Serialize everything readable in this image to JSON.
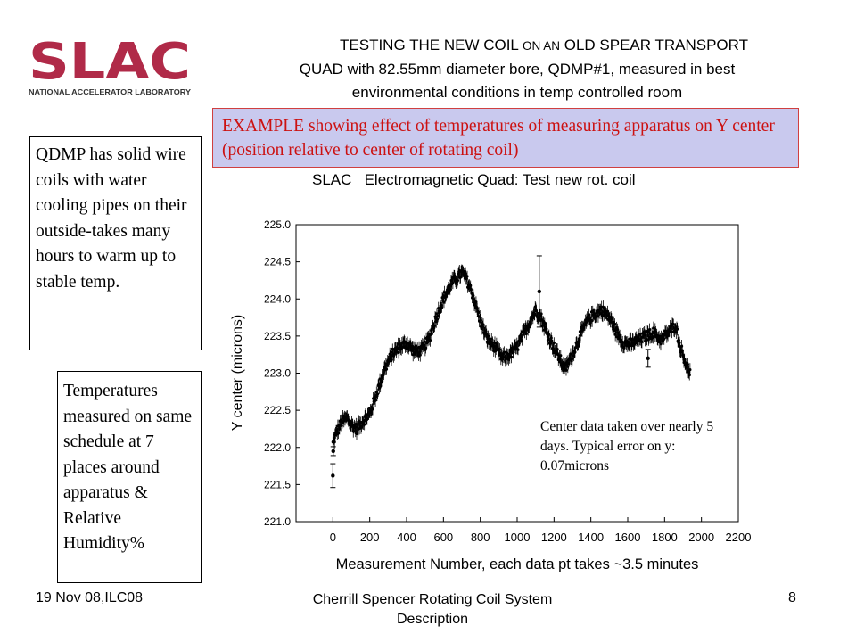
{
  "logo": {
    "text": "SLAC",
    "subtitle": "NATIONAL ACCELERATOR LABORATORY",
    "color": "#b02a48"
  },
  "title": {
    "line1_a": "TESTING THE NEW COIL ",
    "line1_b": "ON AN",
    "line1_c": " OLD SPEAR TRANSPORT",
    "line2": "QUAD with 82.55mm diameter bore, QDMP#1, measured in best",
    "line3": "environmental conditions in temp controlled room"
  },
  "example_box": "EXAMPLE showing effect of temperatures of measuring apparatus on Y center (position relative to center of rotating coil)",
  "note1": "QDMP has solid wire coils with water cooling pipes on their outside-takes many hours to warm up to stable temp.",
  "note2": "Temperatures measured on same schedule at 7 places around apparatus & Relative Humidity%",
  "footer": {
    "left": "19 Nov 08,ILC08",
    "center": "Cherrill Spencer Rotating Coil System Description",
    "right": "8"
  },
  "chart_data": {
    "type": "scatter",
    "title": "SLAC   Electromagnetic Quad: Test new rot. coil",
    "xlabel": "Measurement Number, each data pt takes ~3.5 minutes",
    "ylabel": "Y center (microns)",
    "xlim": [
      -200,
      2200
    ],
    "ylim": [
      221.0,
      225.0
    ],
    "xticks": [
      0,
      200,
      400,
      600,
      800,
      1000,
      1200,
      1400,
      1600,
      1800,
      2000,
      2200
    ],
    "yticks": [
      221.0,
      221.5,
      222.0,
      222.5,
      223.0,
      223.5,
      224.0,
      224.5,
      225.0
    ],
    "typical_error": 0.07,
    "annotation": "Center data taken over nearly 5 days. Typical error on y: 0.07microns",
    "trend_x": [
      0,
      20,
      50,
      80,
      100,
      130,
      160,
      200,
      240,
      280,
      320,
      360,
      400,
      440,
      480,
      520,
      560,
      600,
      640,
      680,
      700,
      720,
      760,
      800,
      840,
      880,
      920,
      960,
      1000,
      1040,
      1080,
      1100,
      1130,
      1160,
      1200,
      1240,
      1260,
      1300,
      1340,
      1380,
      1420,
      1460,
      1500,
      1540,
      1580,
      1620,
      1660,
      1700,
      1740,
      1780,
      1820,
      1860,
      1880,
      1900,
      1920,
      1940
    ],
    "trend_y": [
      222.05,
      222.2,
      222.35,
      222.4,
      222.3,
      222.25,
      222.35,
      222.45,
      222.75,
      223.05,
      223.25,
      223.35,
      223.4,
      223.3,
      223.3,
      223.45,
      223.75,
      224.0,
      224.2,
      224.3,
      224.35,
      224.3,
      224.05,
      223.7,
      223.45,
      223.35,
      223.2,
      223.25,
      223.35,
      223.55,
      223.75,
      223.85,
      223.75,
      223.55,
      223.35,
      223.15,
      223.05,
      223.25,
      223.5,
      223.7,
      223.8,
      223.85,
      223.75,
      223.55,
      223.4,
      223.4,
      223.45,
      223.5,
      223.55,
      223.45,
      223.55,
      223.65,
      223.4,
      223.25,
      223.1,
      223.0
    ],
    "outliers": [
      {
        "x": 0,
        "y": 221.62,
        "err": 0.16
      },
      {
        "x": 2,
        "y": 221.95,
        "err": 0.06
      },
      {
        "x": 1120,
        "y": 224.1,
        "err": 0.48
      },
      {
        "x": 1710,
        "y": 223.2,
        "err": 0.12
      }
    ],
    "colors": {
      "marker": "#000000",
      "axis": "#000000"
    }
  }
}
